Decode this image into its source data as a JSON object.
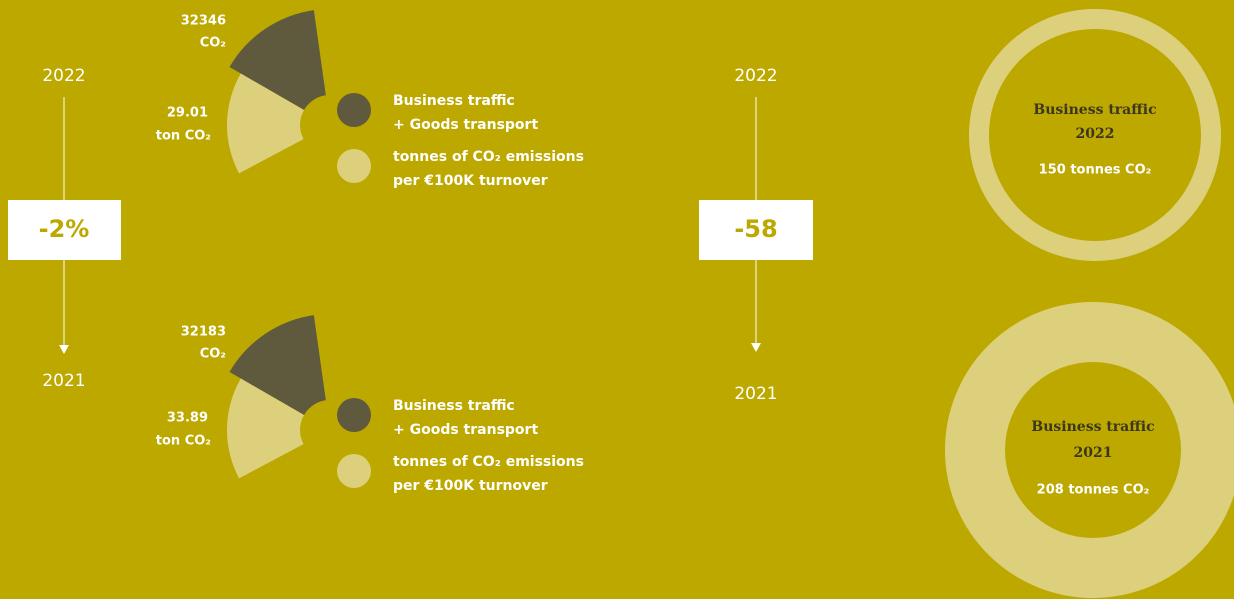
{
  "timelines": [
    {
      "year_top": "2022",
      "change": "-2%",
      "year_bottom": "2021"
    },
    {
      "year_top": "2022",
      "change": "-58",
      "year_bottom": "2021"
    }
  ],
  "wedges": [
    {
      "dark_value": "32346",
      "dark_unit": "CO₂",
      "light_value": "29.01",
      "light_unit": "ton CO₂",
      "legend": [
        [
          "Business traffic",
          "+ Goods transport"
        ],
        [
          "tonnes of CO₂ emissions",
          "per €100K turnover"
        ]
      ]
    },
    {
      "dark_value": "32183",
      "dark_unit": "CO₂",
      "light_value": "33.89",
      "light_unit": "ton CO₂",
      "legend": [
        [
          "Business traffic",
          "+ Goods transport"
        ],
        [
          "tonnes of CO₂ emissions",
          "per €100K turnover"
        ]
      ]
    }
  ],
  "rings": [
    {
      "title": "Business traffic",
      "year": "2022",
      "amount": "150 tonnes CO₂"
    },
    {
      "title": "Business traffic",
      "year": "2021",
      "amount": "208 tonnes CO₂"
    }
  ]
}
